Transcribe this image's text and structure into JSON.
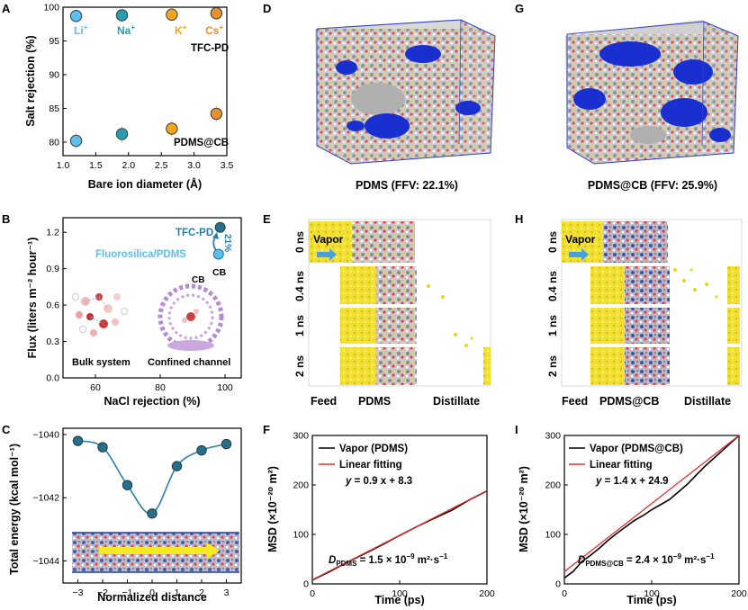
{
  "panels": {
    "A": "A",
    "B": "B",
    "C": "C",
    "D": "D",
    "E": "E",
    "F": "F",
    "G": "G",
    "H": "H",
    "I": "I"
  },
  "panel_d_caption": "PDMS (FFV: 22.1%)",
  "panel_g_caption": "PDMS@CB (FFV: 25.9%)",
  "panel_b_texts": {
    "tfc_pd": "TFC-PD",
    "fluoro": "Fluorosilica/PDMS",
    "cb": "CB",
    "percent": "21%",
    "bulk": "Bulk system",
    "confined": "Confined channel",
    "cb_molecule": "CB"
  },
  "panel_a_texts": {
    "tfc_pd": "TFC-PD",
    "pdms_cb": "PDMS@CB",
    "ions": [
      {
        "name": "Li",
        "sup": "+",
        "color": "#5bc0eb"
      },
      {
        "name": "Na",
        "sup": "+",
        "color": "#2b9cb2"
      },
      {
        "name": "K",
        "sup": "+",
        "color": "#f3a51c"
      },
      {
        "name": "Cs",
        "sup": "+",
        "color": "#e8902a"
      }
    ]
  },
  "panel_e": {
    "vapor": "Vapor",
    "times": [
      "0 ns",
      "0.4 ns",
      "1 ns",
      "2 ns"
    ],
    "bottom": [
      "Feed",
      "PDMS",
      "Distillate"
    ]
  },
  "panel_h": {
    "vapor": "Vapor",
    "times": [
      "0 ns",
      "0.4 ns",
      "1 ns",
      "2 ns"
    ],
    "bottom": [
      "Feed",
      "PDMS@CB",
      "Distillate"
    ]
  },
  "panel_f_texts": {
    "eq_y": "y",
    "eq_rest": " = 0.9 x + 8.3",
    "d_main": "D",
    "d_sub": "PDMS",
    "d_value": " = 1.5 × 10",
    "d_exp": "−9",
    "d_unit": " m²·s",
    "d_unit_exp": "−1"
  },
  "panel_i_texts": {
    "eq_y": "y",
    "eq_rest": " = 1.4 x + 24.9",
    "d_main": "D",
    "d_sub": "PDMS@CB",
    "d_value": " = 2.4 × 10",
    "d_exp": "−9",
    "d_unit": " m²·s",
    "d_unit_exp": "−1"
  },
  "chart_data": [
    {
      "id": "A",
      "type": "scatter",
      "title": "",
      "xlabel": "Bare ion diameter (Å)",
      "ylabel": "Salt rejection (%)",
      "xlim": [
        1.0,
        3.5
      ],
      "ylim": [
        78,
        100
      ],
      "xticks": [
        "1.0",
        "1.5",
        "2.0",
        "2.5",
        "3.0",
        "3.5"
      ],
      "yticks": [
        "80",
        "85",
        "90",
        "95",
        "100"
      ],
      "series": [
        {
          "name": "TFC-PD",
          "x": [
            1.2,
            1.9,
            2.66,
            3.34
          ],
          "y": [
            98.7,
            98.8,
            98.9,
            99.1
          ],
          "colors": [
            "#5bc0eb",
            "#2b9cb2",
            "#f3a51c",
            "#e8902a"
          ]
        },
        {
          "name": "PDMS@CB",
          "x": [
            1.2,
            1.9,
            2.66,
            3.34
          ],
          "y": [
            80.2,
            81.2,
            82.0,
            84.2
          ],
          "colors": [
            "#5bc0eb",
            "#2b9cb2",
            "#f3a51c",
            "#e8902a"
          ]
        }
      ]
    },
    {
      "id": "B",
      "type": "scatter",
      "title": "",
      "xlabel": "NaCl rejection (%)",
      "ylabel": "Flux (liters m⁻² hour⁻¹)",
      "xlim": [
        50,
        105
      ],
      "ylim": [
        0,
        1.32
      ],
      "xticks": [
        "60",
        "80",
        "100"
      ],
      "yticks": [
        "0.0",
        "0.3",
        "0.6",
        "0.9",
        "1.2"
      ],
      "series": [
        {
          "name": "TFC-PD",
          "x": [
            98.5
          ],
          "y": [
            1.24
          ]
        },
        {
          "name": "Fluorosilica/PDMS",
          "x": [
            98.0
          ],
          "y": [
            1.02
          ]
        }
      ]
    },
    {
      "id": "C",
      "type": "line",
      "title": "",
      "xlabel": "Normalized distance",
      "ylabel": "Total energy (kcal mol⁻¹)",
      "xlim": [
        -3.6,
        3.6
      ],
      "ylim": [
        -1044.7,
        -1039.8
      ],
      "xticks": [
        "−3",
        "−2",
        "−1",
        "0",
        "1",
        "2",
        "3"
      ],
      "yticks": [
        "−1040",
        "−1042",
        "−1044"
      ],
      "x": [
        -3,
        -2,
        -1,
        0,
        1,
        2,
        3
      ],
      "y": [
        -1040.2,
        -1040.4,
        -1041.6,
        -1042.5,
        -1041.0,
        -1040.5,
        -1040.3
      ]
    },
    {
      "id": "F",
      "type": "line",
      "title": "",
      "xlabel": "Time (ps)",
      "ylabel": "MSD (×10⁻²⁰ m²)",
      "xlim": [
        0,
        200
      ],
      "ylim": [
        0,
        300
      ],
      "xticks": [
        "0",
        "100",
        "200"
      ],
      "yticks": [
        "0",
        "100",
        "200",
        "300"
      ],
      "series": [
        {
          "name": "Vapor (PDMS)",
          "color": "#000000",
          "x": [
            0,
            20,
            40,
            60,
            80,
            100,
            120,
            140,
            160,
            180,
            200
          ],
          "y": [
            8,
            25,
            44,
            61,
            79,
            98,
            116,
            133,
            149,
            170,
            188
          ]
        },
        {
          "name": "Linear fitting",
          "color": "#e03030",
          "x": [
            0,
            200
          ],
          "y": [
            8.3,
            188.3
          ]
        }
      ]
    },
    {
      "id": "I",
      "type": "line",
      "title": "",
      "xlabel": "Time (ps)",
      "ylabel": "MSD (×10⁻²⁰ m²)",
      "xlim": [
        0,
        200
      ],
      "ylim": [
        0,
        300
      ],
      "xticks": [
        "0",
        "100",
        "200"
      ],
      "yticks": [
        "0",
        "100",
        "200",
        "300"
      ],
      "series": [
        {
          "name": "Vapor (PDMS@CB)",
          "color": "#000000",
          "x": [
            0,
            10,
            20,
            30,
            40,
            50,
            60,
            70,
            80,
            90,
            100,
            110,
            120,
            130,
            140,
            150,
            160,
            170,
            180,
            190,
            200
          ],
          "y": [
            12,
            25,
            45,
            58,
            72,
            88,
            102,
            115,
            128,
            138,
            150,
            160,
            170,
            185,
            200,
            218,
            236,
            252,
            268,
            284,
            300
          ]
        },
        {
          "name": "Linear fitting",
          "color": "#e03030",
          "x": [
            0,
            200
          ],
          "y": [
            24.9,
            304.9
          ]
        }
      ]
    }
  ]
}
